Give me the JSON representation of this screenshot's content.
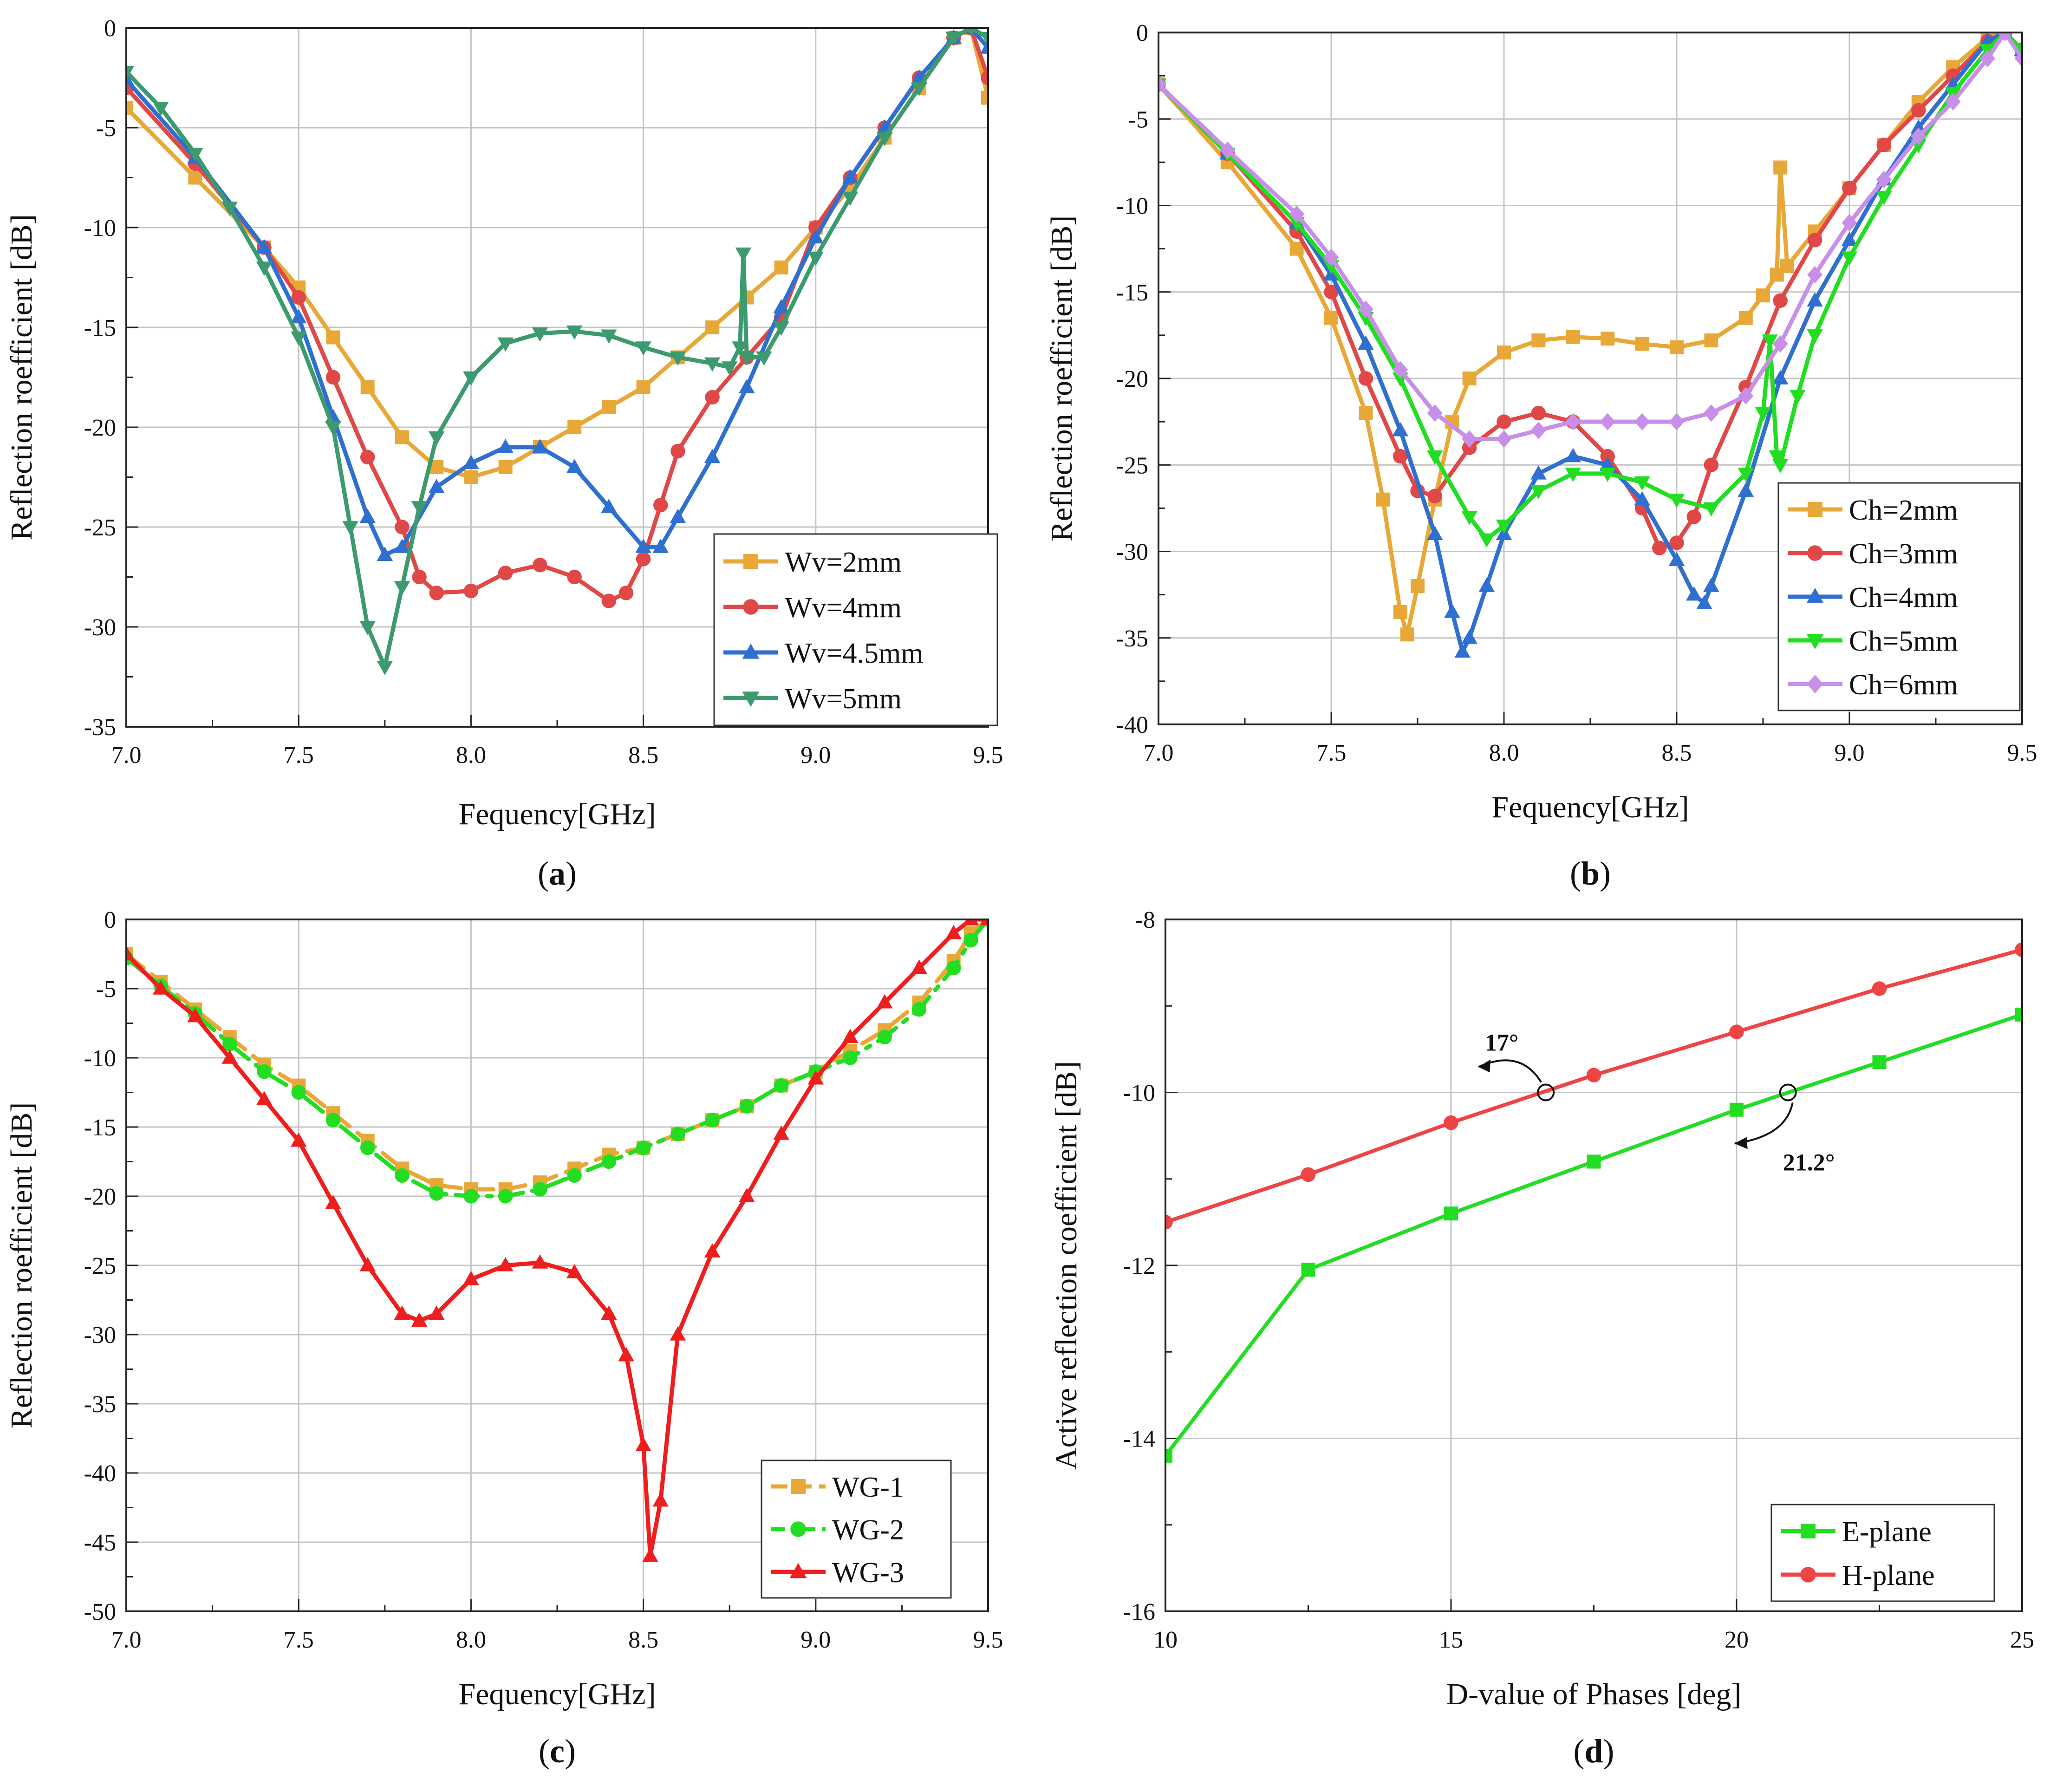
{
  "chart_data": [
    {
      "panel_label": "a",
      "type": "line",
      "xlabel": "Fequency[GHz]",
      "ylabel": "Reflection roefficient [dB]",
      "xlim": [
        7.0,
        9.5
      ],
      "ylim": [
        -35,
        0
      ],
      "xticks": [
        7.0,
        7.5,
        8.0,
        8.5,
        9.0,
        9.5
      ],
      "xtick_labels": [
        "7.0",
        "7.5",
        "8.0",
        "8.5",
        "9.0",
        "9.5"
      ],
      "yticks": [
        -35,
        -30,
        -25,
        -20,
        -15,
        -10,
        -5,
        0
      ],
      "ytick_labels": [
        "-35",
        "-30",
        "-25",
        "-20",
        "-15",
        "-10",
        "-5",
        "0"
      ],
      "grid": true,
      "legend_position": "bottom-right",
      "series": [
        {
          "name": "Wv=2mm",
          "color": "#E8A838",
          "marker": "square",
          "x": [
            7.0,
            7.2,
            7.4,
            7.5,
            7.6,
            7.7,
            7.8,
            7.9,
            8.0,
            8.1,
            8.2,
            8.3,
            8.4,
            8.5,
            8.6,
            8.7,
            8.8,
            8.9,
            9.0,
            9.1,
            9.2,
            9.3,
            9.4,
            9.45,
            9.5
          ],
          "y": [
            -4.0,
            -7.5,
            -11.0,
            -13.0,
            -15.5,
            -18.0,
            -20.5,
            -22.0,
            -22.5,
            -22.0,
            -21.0,
            -20.0,
            -19.0,
            -18.0,
            -16.5,
            -15.0,
            -13.5,
            -12.0,
            -10.0,
            -8.0,
            -5.5,
            -3.0,
            -0.5,
            0.0,
            -3.5
          ]
        },
        {
          "name": "Wv=4mm",
          "color": "#E04848",
          "marker": "circle",
          "x": [
            7.0,
            7.2,
            7.4,
            7.5,
            7.6,
            7.7,
            7.8,
            7.85,
            7.9,
            8.0,
            8.1,
            8.2,
            8.3,
            8.4,
            8.45,
            8.5,
            8.55,
            8.6,
            8.7,
            8.8,
            8.9,
            9.0,
            9.1,
            9.2,
            9.3,
            9.4,
            9.45,
            9.5
          ],
          "y": [
            -3.0,
            -6.8,
            -11.0,
            -13.5,
            -17.5,
            -21.5,
            -25.0,
            -27.5,
            -28.3,
            -28.2,
            -27.3,
            -26.9,
            -27.5,
            -28.7,
            -28.3,
            -26.6,
            -23.9,
            -21.2,
            -18.5,
            -16.5,
            -14.5,
            -10.0,
            -7.5,
            -5.0,
            -2.5,
            -0.5,
            0.0,
            -2.5
          ]
        },
        {
          "name": "Wv=4.5mm",
          "color": "#2E6FCF",
          "marker": "triangle-up",
          "x": [
            7.0,
            7.2,
            7.4,
            7.5,
            7.6,
            7.7,
            7.75,
            7.8,
            7.9,
            8.0,
            8.1,
            8.2,
            8.3,
            8.4,
            8.5,
            8.55,
            8.6,
            8.7,
            8.8,
            8.9,
            9.0,
            9.1,
            9.2,
            9.3,
            9.4,
            9.45,
            9.5
          ],
          "y": [
            -2.6,
            -6.5,
            -11.0,
            -14.5,
            -19.5,
            -24.5,
            -26.4,
            -26.0,
            -23.0,
            -21.8,
            -21.0,
            -21.0,
            -22.0,
            -24.0,
            -26.0,
            -26.0,
            -24.5,
            -21.5,
            -18.0,
            -14.0,
            -10.5,
            -7.5,
            -5.0,
            -2.5,
            -0.5,
            0.0,
            -1.0
          ]
        },
        {
          "name": "Wv=5mm",
          "color": "#3C9A6E",
          "marker": "triangle-down",
          "x": [
            7.0,
            7.1,
            7.2,
            7.3,
            7.4,
            7.5,
            7.6,
            7.65,
            7.7,
            7.75,
            7.8,
            7.85,
            7.9,
            8.0,
            8.1,
            8.2,
            8.3,
            8.4,
            8.5,
            8.6,
            8.7,
            8.75,
            8.78,
            8.79,
            8.8,
            8.85,
            8.9,
            9.0,
            9.1,
            9.2,
            9.3,
            9.4,
            9.45,
            9.5
          ],
          "y": [
            -2.2,
            -4.0,
            -6.3,
            -9.0,
            -12.0,
            -15.5,
            -20.0,
            -25.0,
            -30.0,
            -32.0,
            -28.0,
            -24.0,
            -20.5,
            -17.5,
            -15.8,
            -15.3,
            -15.2,
            -15.4,
            -16.0,
            -16.5,
            -16.8,
            -17.0,
            -16.0,
            -11.3,
            -16.5,
            -16.5,
            -15.0,
            -11.5,
            -8.5,
            -5.5,
            -3.0,
            -0.5,
            0.0,
            -0.5
          ]
        }
      ]
    },
    {
      "panel_label": "b",
      "type": "line",
      "xlabel": "Fequency[GHz]",
      "ylabel": "Reflection roefficient [dB]",
      "xlim": [
        7.0,
        9.5
      ],
      "ylim": [
        -40,
        0
      ],
      "xticks": [
        7.0,
        7.5,
        8.0,
        8.5,
        9.0,
        9.5
      ],
      "xtick_labels": [
        "7.0",
        "7.5",
        "8.0",
        "8.5",
        "9.0",
        "9.5"
      ],
      "yticks": [
        -40,
        -35,
        -30,
        -25,
        -20,
        -15,
        -10,
        -5,
        0
      ],
      "ytick_labels": [
        "-40",
        "-35",
        "-30",
        "-25",
        "-20",
        "-15",
        "-10",
        "-5",
        "0"
      ],
      "grid": true,
      "legend_position": "bottom-right",
      "series": [
        {
          "name": "Ch=2mm",
          "color": "#E8A838",
          "marker": "square",
          "x": [
            7.0,
            7.2,
            7.4,
            7.5,
            7.6,
            7.65,
            7.7,
            7.72,
            7.75,
            7.8,
            7.85,
            7.9,
            8.0,
            8.1,
            8.2,
            8.3,
            8.4,
            8.5,
            8.6,
            8.7,
            8.75,
            8.79,
            8.8,
            8.82,
            8.9,
            9.0,
            9.1,
            9.2,
            9.3,
            9.4,
            9.45,
            9.5
          ],
          "y": [
            -3.0,
            -7.5,
            -12.5,
            -16.5,
            -22.0,
            -27.0,
            -33.5,
            -34.8,
            -32.0,
            -27.0,
            -22.5,
            -20.0,
            -18.5,
            -17.8,
            -17.6,
            -17.7,
            -18.0,
            -18.2,
            -17.8,
            -16.5,
            -15.2,
            -14.0,
            -7.8,
            -13.5,
            -11.5,
            -9.0,
            -6.5,
            -4.0,
            -2.0,
            -0.3,
            0.0,
            -1.0
          ]
        },
        {
          "name": "Ch=3mm",
          "color": "#E04848",
          "marker": "circle",
          "x": [
            7.0,
            7.2,
            7.4,
            7.5,
            7.6,
            7.7,
            7.75,
            7.8,
            7.9,
            8.0,
            8.1,
            8.2,
            8.3,
            8.4,
            8.45,
            8.5,
            8.55,
            8.6,
            8.7,
            8.8,
            8.9,
            9.0,
            9.1,
            9.2,
            9.3,
            9.4,
            9.45,
            9.5
          ],
          "y": [
            -3.0,
            -7.0,
            -11.5,
            -15.0,
            -20.0,
            -24.5,
            -26.5,
            -26.8,
            -24.0,
            -22.5,
            -22.0,
            -22.5,
            -24.5,
            -27.5,
            -29.8,
            -29.5,
            -28.0,
            -25.0,
            -20.5,
            -15.5,
            -12.0,
            -9.0,
            -6.5,
            -4.5,
            -2.5,
            -0.5,
            0.0,
            -1.0
          ]
        },
        {
          "name": "Ch=4mm",
          "color": "#2E6FCF",
          "marker": "triangle-up",
          "x": [
            7.0,
            7.2,
            7.4,
            7.5,
            7.6,
            7.7,
            7.8,
            7.85,
            7.88,
            7.9,
            7.95,
            8.0,
            8.1,
            8.2,
            8.3,
            8.4,
            8.5,
            8.55,
            8.58,
            8.6,
            8.7,
            8.8,
            8.9,
            9.0,
            9.1,
            9.2,
            9.3,
            9.4,
            9.45,
            9.5
          ],
          "y": [
            -3.0,
            -7.0,
            -11.0,
            -14.0,
            -18.0,
            -23.0,
            -29.0,
            -33.5,
            -35.8,
            -35.0,
            -32.0,
            -29.0,
            -25.5,
            -24.5,
            -25.0,
            -27.0,
            -30.5,
            -32.5,
            -33.0,
            -32.0,
            -26.5,
            -20.0,
            -15.5,
            -12.0,
            -8.5,
            -5.5,
            -3.0,
            -0.5,
            0.0,
            -1.0
          ]
        },
        {
          "name": "Ch=5mm",
          "color": "#22DD22",
          "marker": "triangle-down",
          "x": [
            7.0,
            7.2,
            7.4,
            7.5,
            7.6,
            7.7,
            7.8,
            7.9,
            7.95,
            8.0,
            8.1,
            8.2,
            8.3,
            8.4,
            8.5,
            8.6,
            8.7,
            8.75,
            8.77,
            8.79,
            8.8,
            8.85,
            8.9,
            9.0,
            9.1,
            9.2,
            9.3,
            9.4,
            9.45,
            9.5
          ],
          "y": [
            -3.0,
            -7.0,
            -11.0,
            -13.5,
            -16.5,
            -20.0,
            -24.5,
            -28.0,
            -29.3,
            -28.5,
            -26.5,
            -25.5,
            -25.5,
            -26.0,
            -27.0,
            -27.5,
            -25.5,
            -22.0,
            -17.8,
            -24.5,
            -25.0,
            -21.0,
            -17.5,
            -13.0,
            -9.5,
            -6.5,
            -3.5,
            -1.0,
            0.0,
            -1.0
          ]
        },
        {
          "name": "Ch=6mm",
          "color": "#C88FE8",
          "marker": "diamond",
          "x": [
            7.0,
            7.2,
            7.4,
            7.5,
            7.6,
            7.7,
            7.8,
            7.9,
            8.0,
            8.1,
            8.2,
            8.3,
            8.4,
            8.5,
            8.6,
            8.7,
            8.8,
            8.9,
            9.0,
            9.1,
            9.2,
            9.3,
            9.4,
            9.45,
            9.5
          ],
          "y": [
            -3.0,
            -6.8,
            -10.5,
            -13.0,
            -16.0,
            -19.5,
            -22.0,
            -23.5,
            -23.5,
            -23.0,
            -22.5,
            -22.5,
            -22.5,
            -22.5,
            -22.0,
            -21.0,
            -18.0,
            -14.0,
            -11.0,
            -8.5,
            -6.0,
            -4.0,
            -1.5,
            0.0,
            -1.5
          ]
        }
      ]
    },
    {
      "panel_label": "c",
      "type": "line",
      "xlabel": "Fequency[GHz]",
      "ylabel": "Reflection roefficient [dB]",
      "xlim": [
        7.0,
        9.5
      ],
      "ylim": [
        -50,
        0
      ],
      "xticks": [
        7.0,
        7.5,
        8.0,
        8.5,
        9.0,
        9.5
      ],
      "xtick_labels": [
        "7.0",
        "7.5",
        "8.0",
        "8.5",
        "9.0",
        "9.5"
      ],
      "yticks": [
        -50,
        -45,
        -40,
        -35,
        -30,
        -25,
        -20,
        -15,
        -10,
        -5,
        0
      ],
      "ytick_labels": [
        "-50",
        "-45",
        "-40",
        "-35",
        "-30",
        "-25",
        "-20",
        "-15",
        "-10",
        "-5",
        "0"
      ],
      "grid": true,
      "legend_position": "bottom-right",
      "series": [
        {
          "name": "WG-1",
          "color": "#E8A838",
          "marker": "square",
          "dash": "dashed",
          "x": [
            7.0,
            7.1,
            7.2,
            7.3,
            7.4,
            7.5,
            7.6,
            7.7,
            7.8,
            7.9,
            8.0,
            8.1,
            8.2,
            8.3,
            8.4,
            8.5,
            8.6,
            8.7,
            8.8,
            8.9,
            9.0,
            9.1,
            9.2,
            9.3,
            9.4,
            9.45,
            9.5
          ],
          "y": [
            -2.5,
            -4.5,
            -6.5,
            -8.5,
            -10.5,
            -12.0,
            -14.0,
            -16.0,
            -18.0,
            -19.2,
            -19.5,
            -19.5,
            -19.0,
            -18.0,
            -17.0,
            -16.5,
            -15.5,
            -14.5,
            -13.5,
            -12.0,
            -11.0,
            -9.5,
            -8.0,
            -6.0,
            -3.0,
            -1.0,
            0.0
          ]
        },
        {
          "name": "WG-2",
          "color": "#22DD22",
          "marker": "circle",
          "dash": "dashdot",
          "x": [
            7.0,
            7.1,
            7.2,
            7.3,
            7.4,
            7.5,
            7.6,
            7.7,
            7.8,
            7.9,
            8.0,
            8.1,
            8.2,
            8.3,
            8.4,
            8.5,
            8.6,
            8.7,
            8.8,
            8.9,
            9.0,
            9.1,
            9.2,
            9.3,
            9.4,
            9.45,
            9.5
          ],
          "y": [
            -2.8,
            -4.8,
            -6.8,
            -9.0,
            -11.0,
            -12.5,
            -14.5,
            -16.5,
            -18.5,
            -19.8,
            -20.0,
            -20.0,
            -19.5,
            -18.5,
            -17.5,
            -16.5,
            -15.5,
            -14.5,
            -13.5,
            -12.0,
            -11.0,
            -10.0,
            -8.5,
            -6.5,
            -3.5,
            -1.5,
            0.0
          ]
        },
        {
          "name": "WG-3",
          "color": "#EE1E1E",
          "marker": "triangle-up",
          "x": [
            7.0,
            7.1,
            7.2,
            7.3,
            7.4,
            7.5,
            7.6,
            7.7,
            7.8,
            7.85,
            7.9,
            8.0,
            8.1,
            8.2,
            8.3,
            8.4,
            8.45,
            8.5,
            8.52,
            8.55,
            8.6,
            8.7,
            8.8,
            8.9,
            9.0,
            9.1,
            9.2,
            9.3,
            9.4,
            9.45,
            9.5
          ],
          "y": [
            -2.5,
            -5.0,
            -7.0,
            -10.0,
            -13.0,
            -16.0,
            -20.5,
            -25.0,
            -28.5,
            -29.0,
            -28.5,
            -26.0,
            -25.0,
            -24.8,
            -25.5,
            -28.5,
            -31.5,
            -38.0,
            -46.0,
            -42.0,
            -30.0,
            -24.0,
            -20.0,
            -15.5,
            -11.5,
            -8.5,
            -6.0,
            -3.5,
            -1.0,
            0.0,
            0.0
          ]
        }
      ]
    },
    {
      "panel_label": "d",
      "type": "line",
      "xlabel": "D-value of Phases [deg]",
      "ylabel": "Active reflection coefficient [dB]",
      "xlim": [
        10,
        25
      ],
      "ylim": [
        -16,
        -8
      ],
      "xticks": [
        10,
        15,
        20,
        25
      ],
      "xtick_labels": [
        "10",
        "15",
        "20",
        "25"
      ],
      "yticks": [
        -16,
        -14,
        -12,
        -10,
        -8
      ],
      "ytick_labels": [
        "-16",
        "-14",
        "-12",
        "-10",
        "-8"
      ],
      "grid": true,
      "legend_position": "bottom-right",
      "series": [
        {
          "name": "E-plane",
          "color": "#22DD22",
          "marker": "square",
          "x": [
            10,
            12.5,
            15,
            17.5,
            20,
            22.5,
            25
          ],
          "y": [
            -14.2,
            -12.05,
            -11.4,
            -10.8,
            -10.2,
            -9.65,
            -9.1
          ]
        },
        {
          "name": "H-plane",
          "color": "#EE4444",
          "marker": "circle",
          "x": [
            10,
            12.5,
            15,
            17.5,
            20,
            22.5,
            25
          ],
          "y": [
            -11.5,
            -10.95,
            -10.35,
            -9.8,
            -9.3,
            -8.8,
            -8.35
          ]
        }
      ],
      "annotations": [
        {
          "text": "17°",
          "x": 16.66,
          "y": -10.0,
          "dir": "left"
        },
        {
          "text": "21.2°",
          "x": 20.9,
          "y": -10.0,
          "dir": "right"
        }
      ]
    }
  ]
}
